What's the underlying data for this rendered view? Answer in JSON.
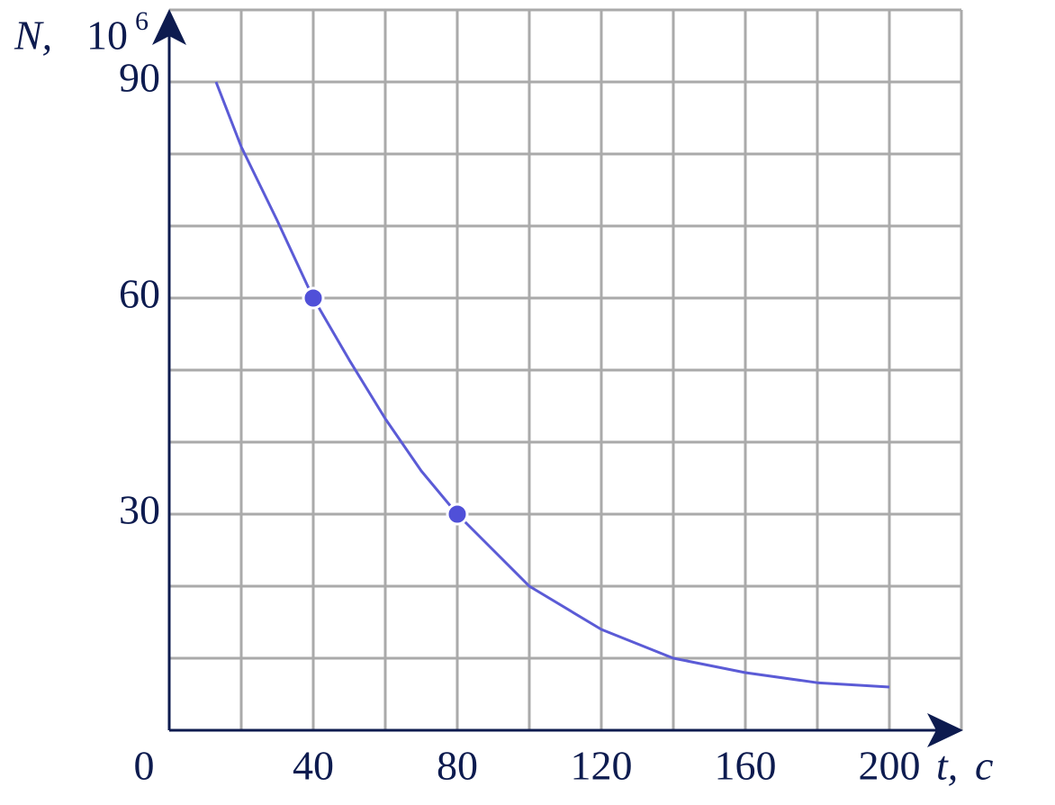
{
  "chart_data": {
    "type": "line",
    "ylabel": "N,",
    "ylabel_unit": "10",
    "ylabel_power": "6",
    "xlabel": "t,",
    "xlabel_unit": "c",
    "xlim": [
      0,
      220
    ],
    "ylim": [
      0,
      100
    ],
    "xticks": [
      0,
      40,
      80,
      120,
      160,
      200
    ],
    "yticks": [
      30,
      60,
      90
    ],
    "grid_x": [
      20,
      40,
      60,
      80,
      100,
      120,
      140,
      160,
      180,
      200,
      220
    ],
    "grid_y": [
      10,
      20,
      30,
      40,
      50,
      60,
      70,
      80,
      90,
      100
    ],
    "grid_color": "#aaaaaa",
    "axis_color": "#0d1b4f",
    "series": [
      {
        "color": "#5b5bd6",
        "x": [
          13,
          20,
          30,
          40,
          50,
          60,
          70,
          80,
          90,
          100,
          120,
          140,
          160,
          180,
          200
        ],
        "values": [
          90,
          81,
          70.75,
          60,
          51.4,
          43.25,
          36,
          30,
          25,
          20,
          14,
          10,
          8,
          6.6,
          6
        ]
      }
    ],
    "points": {
      "color": "#5050d8",
      "x": [
        40,
        80
      ],
      "values": [
        60,
        30
      ]
    }
  }
}
